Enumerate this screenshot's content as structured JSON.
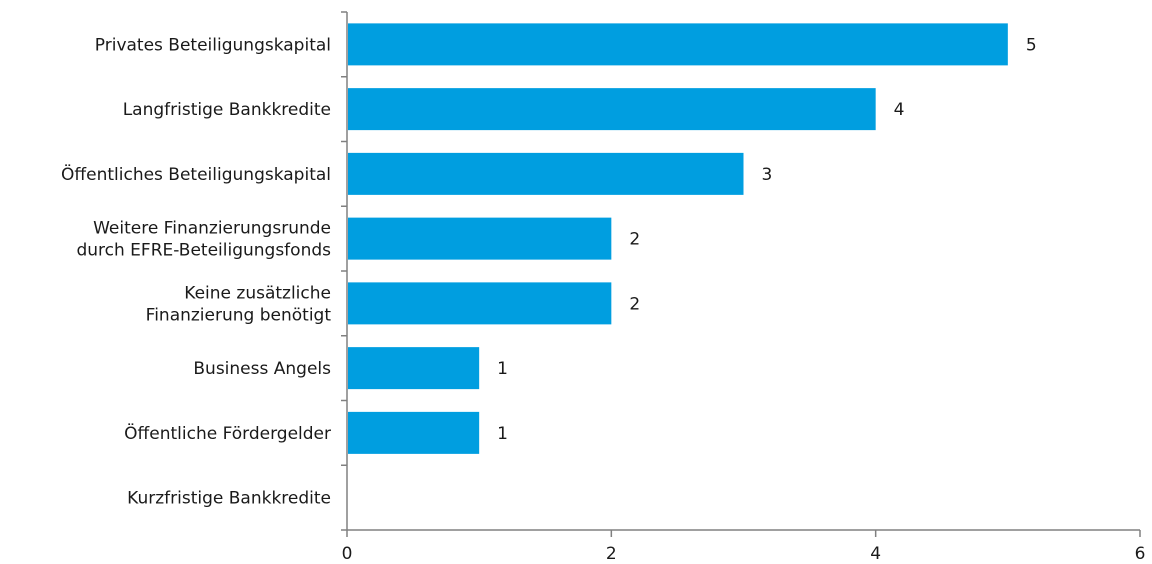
{
  "chart_data": {
    "type": "bar",
    "orientation": "horizontal",
    "categories": [
      [
        "Privates Beteiligungskapital"
      ],
      [
        "Langfristige Bankkredite"
      ],
      [
        "Öffentliches Beteiligungskapital"
      ],
      [
        "Weitere Finanzierungsrunde",
        "durch EFRE-Beteiligungsfonds"
      ],
      [
        "Keine zusätzliche",
        "Finanzierung benötigt"
      ],
      [
        "Business Angels"
      ],
      [
        "Öffentliche Fördergelder"
      ],
      [
        "Kurzfristige Bankkredite"
      ]
    ],
    "values": [
      5,
      4,
      3,
      2,
      2,
      1,
      1,
      0
    ],
    "data_labels": [
      "5",
      "4",
      "3",
      "2",
      "2",
      "1",
      "1",
      ""
    ],
    "xlim": [
      0,
      6
    ],
    "x_ticks": [
      0,
      2,
      4,
      6
    ],
    "x_tick_labels": [
      "0",
      "2",
      "4",
      "6"
    ],
    "grid": false,
    "bar_color": "#009EE0",
    "axis_color": "#808080"
  }
}
